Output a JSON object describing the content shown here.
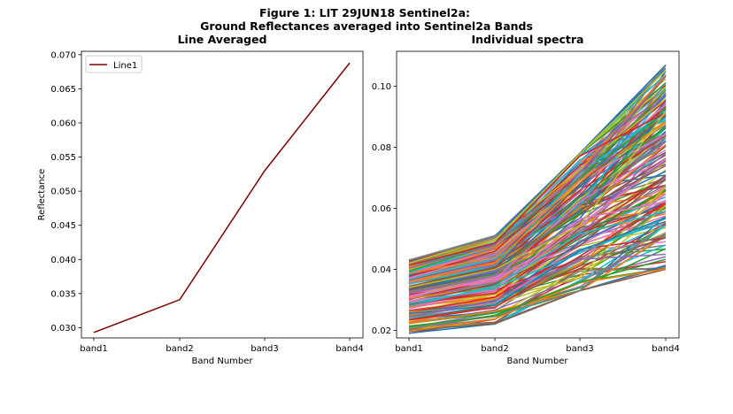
{
  "figure": {
    "suptitle_line1": "Figure 1: LIT 29JUN18  Sentinel2a:",
    "suptitle_line2": "Ground Reflectances averaged into Sentinel2a Bands"
  },
  "chart_data": [
    {
      "type": "line",
      "title": "Line Averaged",
      "xlabel": "Band Number",
      "ylabel": "Reflectance",
      "categories": [
        "band1",
        "band2",
        "band3",
        "band4"
      ],
      "ylim": [
        0.0285,
        0.0705
      ],
      "yticks": [
        "0.030",
        "0.035",
        "0.040",
        "0.045",
        "0.050",
        "0.055",
        "0.060",
        "0.065",
        "0.070"
      ],
      "legend_position": "top-left",
      "series": [
        {
          "name": "Line1",
          "values": [
            0.0293,
            0.0341,
            0.053,
            0.0688
          ],
          "color": "#800000"
        }
      ]
    },
    {
      "type": "line",
      "title": "Individual spectra",
      "xlabel": "Band Number",
      "ylabel": "",
      "categories": [
        "band1",
        "band2",
        "band3",
        "band4"
      ],
      "ylim": [
        0.0175,
        0.1115
      ],
      "yticks": [
        "0.02",
        "0.04",
        "0.06",
        "0.08",
        "0.10"
      ],
      "series_colors": [
        "#1f77b4",
        "#ff7f0e",
        "#2ca02c",
        "#d62728",
        "#9467bd",
        "#8c564b",
        "#e377c2",
        "#7f7f7f",
        "#bcbd22",
        "#17becf"
      ],
      "series_count": 200,
      "band_ranges": [
        [
          0.019,
          0.043
        ],
        [
          0.022,
          0.051
        ],
        [
          0.033,
          0.078
        ],
        [
          0.04,
          0.107
        ]
      ]
    }
  ]
}
